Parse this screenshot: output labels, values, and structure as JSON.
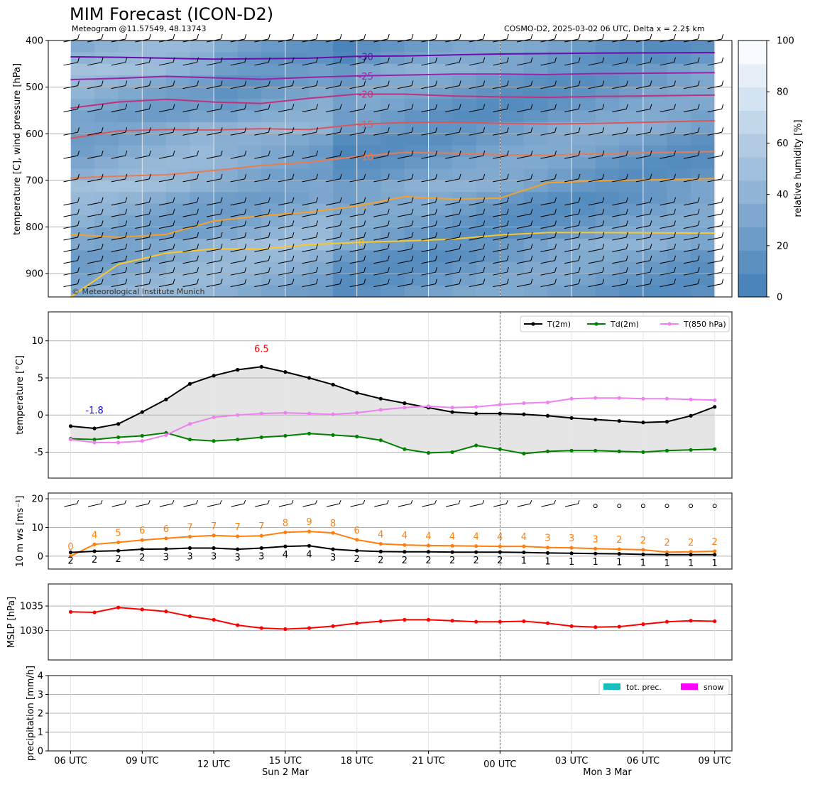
{
  "header": {
    "title": "MIM Forecast (ICON-D2)",
    "subtitle_left": "Meteogram @11.57549, 48.13743",
    "subtitle_right": "COSMO-D2, 2025-03-02 06 UTC, Delta x = 2.2$ km",
    "copyright": "© Meteorological Institute Munich"
  },
  "colors": {
    "humidity_light": "#f7fbff",
    "humidity_dark": "#4a84ba",
    "t2m": "#000000",
    "td2m": "#008000",
    "t850": "#ee82ee",
    "gust": "#ff7f0e",
    "mslp": "#ff0000",
    "tot_prec": "#17bebb",
    "snow": "#ff00ff",
    "min_label": "#0000ff",
    "max_label": "#ff0000"
  },
  "time_axis": {
    "hours": [
      0,
      1,
      2,
      3,
      4,
      5,
      6,
      7,
      8,
      9,
      10,
      11,
      12,
      13,
      14,
      15,
      16,
      17,
      18,
      19,
      20,
      21,
      22,
      23,
      24,
      25,
      26,
      27
    ],
    "tick_labels": [
      "06 UTC",
      "09 UTC",
      "12 UTC",
      "15 UTC",
      "18 UTC",
      "21 UTC",
      "00 UTC",
      "03 UTC",
      "06 UTC",
      "09 UTC"
    ],
    "date_labels": [
      "Sun 2 Mar",
      "Mon 3 Mar"
    ]
  },
  "chart_data": [
    {
      "type": "heatmap",
      "name": "upper-air",
      "ylabel": "temperature [C], wind pressure [hPa]",
      "y_ticks": [
        400,
        500,
        600,
        700,
        800,
        900
      ],
      "ylim": [
        950,
        400
      ],
      "colorbar": {
        "label": "relative humidity [%]",
        "ticks": [
          0,
          20,
          40,
          60,
          80,
          100
        ]
      },
      "isotherms": [
        {
          "label": "-30",
          "values": [
            -30,
            -30,
            -30,
            -30,
            -30,
            -30,
            -30,
            -30,
            -30,
            -30
          ]
        },
        {
          "label": "-25",
          "values": [
            -25,
            -25,
            -25,
            -25,
            -25,
            -25,
            -25,
            -25,
            -25,
            -25
          ]
        },
        {
          "label": "-20",
          "values": [
            -20,
            -20,
            -20,
            -20,
            -20,
            -20,
            -20,
            -20,
            -20,
            -20
          ]
        },
        {
          "label": "-15",
          "values": [
            -15,
            -15,
            -15,
            -15,
            -15,
            -15,
            -15,
            -15,
            -15,
            -15
          ]
        },
        {
          "label": "-10",
          "values": [
            -10,
            -10,
            -10,
            -10,
            -10,
            -10,
            -10,
            -10,
            -10,
            -10
          ]
        },
        {
          "label": "-5",
          "values": [
            -5,
            -5,
            -5,
            -5,
            -5,
            -5,
            -5,
            -5,
            -5,
            -5
          ]
        },
        {
          "label": "0",
          "values": [
            0,
            0,
            0,
            0,
            0,
            0,
            0,
            0,
            0,
            0
          ]
        }
      ],
      "isotherm_pressure": {
        "-30": [
          435,
          436,
          438,
          440,
          439,
          438,
          434,
          433,
          431,
          429,
          428,
          427,
          426
        ],
        "-25": [
          484,
          481,
          477,
          480,
          483,
          479,
          476,
          474,
          472,
          472,
          473,
          471,
          469
        ],
        "-20": [
          545,
          532,
          526,
          532,
          535,
          524,
          515,
          515,
          519,
          521,
          522,
          520,
          517
        ],
        "-15": [
          610,
          594,
          591,
          592,
          589,
          591,
          580,
          576,
          575,
          578,
          579,
          578,
          572
        ],
        "-10": [
          695,
          691,
          688,
          679,
          668,
          661,
          649,
          640,
          642,
          645,
          646,
          643,
          638
        ],
        "-5": [
          816,
          822,
          816,
          787,
          776,
          768,
          755,
          735,
          740,
          738,
          705,
          701,
          696
        ],
        "0": [
          950,
          880,
          856,
          847,
          847,
          838,
          833,
          830,
          826,
          817,
          812,
          812,
          813
        ]
      },
      "isotherm_hours": [
        0,
        2,
        4,
        6,
        8,
        10,
        12,
        14,
        16,
        18,
        20,
        22,
        27
      ]
    },
    {
      "type": "line",
      "name": "near-surface-temperature",
      "ylabel": "temperature [$^\\circ$C]",
      "ylim": [
        -8.5,
        13.9
      ],
      "y_ticks": [
        -5,
        0,
        5,
        10
      ],
      "annotations": {
        "min": "-1.8",
        "max": "6.5"
      },
      "series": [
        {
          "name": "T(2m)",
          "values": [
            -1.5,
            -1.8,
            -1.2,
            0.4,
            2.1,
            4.2,
            5.3,
            6.1,
            6.5,
            5.8,
            5.0,
            4.1,
            3.0,
            2.2,
            1.6,
            1.0,
            0.4,
            0.2,
            0.2,
            0.1,
            -0.1,
            -0.4,
            -0.6,
            -0.8,
            -1.0,
            -0.9,
            -0.1,
            1.1
          ]
        },
        {
          "name": "Td(2m)",
          "values": [
            -3.2,
            -3.3,
            -3.0,
            -2.8,
            -2.4,
            -3.3,
            -3.5,
            -3.3,
            -3.0,
            -2.8,
            -2.5,
            -2.7,
            -2.9,
            -3.4,
            -4.6,
            -5.1,
            -5.0,
            -4.1,
            -4.6,
            -5.2,
            -4.9,
            -4.8,
            -4.8,
            -4.9,
            -5.0,
            -4.8,
            -4.7,
            -4.6
          ]
        },
        {
          "name": "T(850 hPa)",
          "values": [
            -3.3,
            -3.7,
            -3.7,
            -3.5,
            -2.7,
            -1.2,
            -0.3,
            0.0,
            0.2,
            0.3,
            0.2,
            0.1,
            0.3,
            0.7,
            1.0,
            1.2,
            1.0,
            1.1,
            1.4,
            1.6,
            1.7,
            2.2,
            2.3,
            2.3,
            2.2,
            2.2,
            2.1,
            2.0
          ]
        }
      ]
    },
    {
      "type": "line",
      "name": "wind-speed",
      "ylabel": "10 m ws [ms$^{-1}$]",
      "ylim": [
        -4.5,
        22
      ],
      "y_ticks": [
        0,
        10,
        20
      ],
      "series": [
        {
          "name": "gust",
          "values": [
            0,
            4,
            5,
            6,
            6,
            7,
            7,
            7,
            7,
            8,
            9,
            8,
            6,
            4,
            4,
            4,
            4,
            4,
            4,
            4,
            3,
            3,
            3,
            2,
            2,
            2,
            2,
            2
          ],
          "curve": [
            0,
            4.1,
            4.8,
            5.6,
            6.2,
            6.8,
            7.2,
            6.9,
            7.1,
            8.3,
            8.6,
            8.1,
            5.7,
            4.3,
            3.9,
            3.7,
            3.6,
            3.5,
            3.4,
            3.4,
            3.0,
            2.9,
            2.6,
            2.4,
            2.2,
            1.4,
            1.5,
            1.7
          ]
        },
        {
          "name": "mean",
          "values": [
            2,
            2,
            2,
            2,
            3,
            3,
            3,
            3,
            3,
            4,
            4,
            3,
            2,
            2,
            2,
            2,
            2,
            2,
            2,
            1,
            1,
            1,
            1,
            1,
            1,
            1,
            1,
            1
          ],
          "curve": [
            1.3,
            1.7,
            1.9,
            2.4,
            2.5,
            2.8,
            2.8,
            2.4,
            2.8,
            3.4,
            3.6,
            2.4,
            1.9,
            1.6,
            1.5,
            1.5,
            1.4,
            1.4,
            1.4,
            1.3,
            1.1,
            1.0,
            0.9,
            0.8,
            0.6,
            0.5,
            0.5,
            0.5
          ]
        }
      ]
    },
    {
      "type": "line",
      "name": "mslp",
      "ylabel": "MSLP [hPa]",
      "ylim": [
        1024,
        1039.5
      ],
      "y_ticks": [
        1030,
        1035
      ],
      "series": [
        {
          "name": "MSLP",
          "values": [
            1033.8,
            1033.7,
            1034.7,
            1034.3,
            1033.9,
            1032.9,
            1032.2,
            1031.1,
            1030.5,
            1030.3,
            1030.5,
            1030.9,
            1031.5,
            1031.9,
            1032.2,
            1032.2,
            1032.0,
            1031.8,
            1031.8,
            1031.9,
            1031.5,
            1030.9,
            1030.7,
            1030.8,
            1031.3,
            1031.8,
            1032.0,
            1031.9
          ]
        }
      ]
    },
    {
      "type": "bar",
      "name": "precipitation",
      "ylabel": "precipitation [mm/h]",
      "ylim": [
        0,
        4
      ],
      "y_ticks": [
        0,
        1,
        2,
        3,
        4
      ],
      "series": [
        {
          "name": "tot. prec.",
          "values": [
            0,
            0,
            0,
            0,
            0,
            0,
            0,
            0,
            0,
            0,
            0,
            0,
            0,
            0,
            0,
            0,
            0,
            0,
            0,
            0,
            0,
            0,
            0,
            0,
            0,
            0,
            0,
            0
          ]
        },
        {
          "name": "snow",
          "values": [
            0,
            0,
            0,
            0,
            0,
            0,
            0,
            0,
            0,
            0,
            0,
            0,
            0,
            0,
            0,
            0,
            0,
            0,
            0,
            0,
            0,
            0,
            0,
            0,
            0,
            0,
            0,
            0
          ]
        }
      ]
    }
  ]
}
